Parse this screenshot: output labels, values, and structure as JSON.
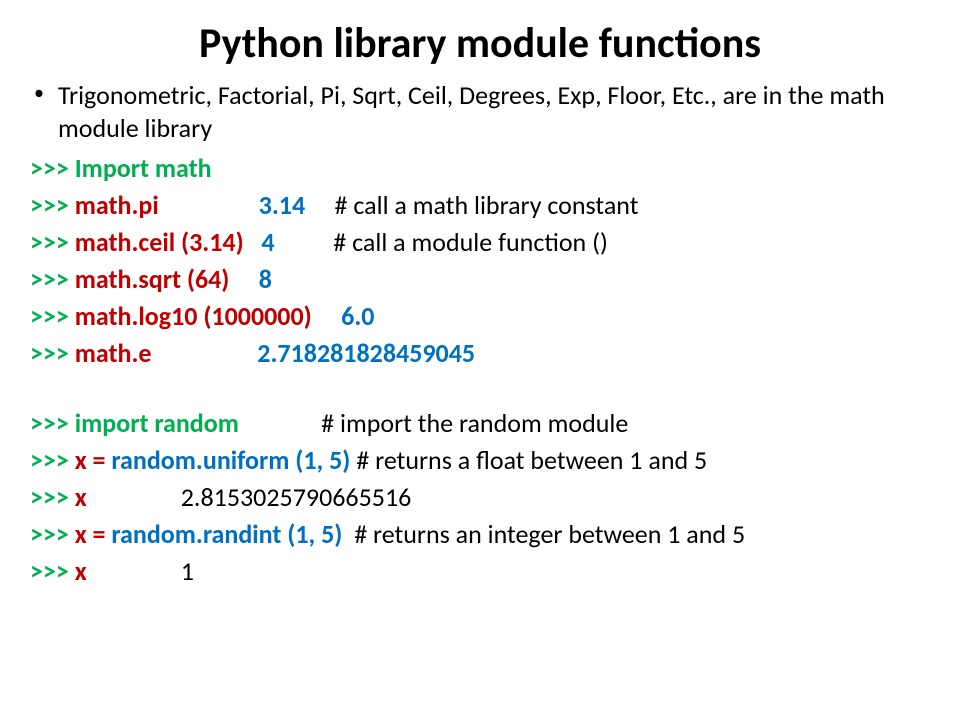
{
  "title": "Python library module functions",
  "bullet": "Trigonometric, Factorial, Pi, Sqrt, Ceil, Degrees, Exp, Floor, Etc., are in the math module library",
  "prompt": ">>> ",
  "lines": {
    "l1": {
      "kw": "Import math"
    },
    "l2": {
      "kw": "math.pi",
      "gap": "                 ",
      "val": "3.14",
      "gap2": "     ",
      "cmt": "# call a math library constant"
    },
    "l3": {
      "kw": "math.ceil (3.14)",
      "gap": "   ",
      "val": "4",
      "gap2": "          ",
      "cmt": "# call a module function ()"
    },
    "l4": {
      "kw": "math.sqrt (64)",
      "gap": "     ",
      "val": "8"
    },
    "l5": {
      "kw": "math.log10 (1000000)",
      "gap": "     ",
      "val": "6.0"
    },
    "l6": {
      "kw": "math.e",
      "gap": "                  ",
      "val": "2.718281828459045"
    },
    "l7": {
      "kw": "import random",
      "gap": "              ",
      "cmt": "# import the random module"
    },
    "l8": {
      "kw1": "x = ",
      "kw2": "random.uniform (1, 5)",
      "gap": " ",
      "cmt": "# returns a float between 1 and 5"
    },
    "l9": {
      "kw": "x",
      "gap": "                ",
      "val": "2.8153025790665516"
    },
    "l10": {
      "kw1": "x = ",
      "kw2": "random.randint (1, 5)",
      "gap": "  ",
      "cmt": "# returns an integer between 1 and 5"
    },
    "l11": {
      "kw": "x",
      "gap": "                ",
      "val": "1"
    }
  }
}
